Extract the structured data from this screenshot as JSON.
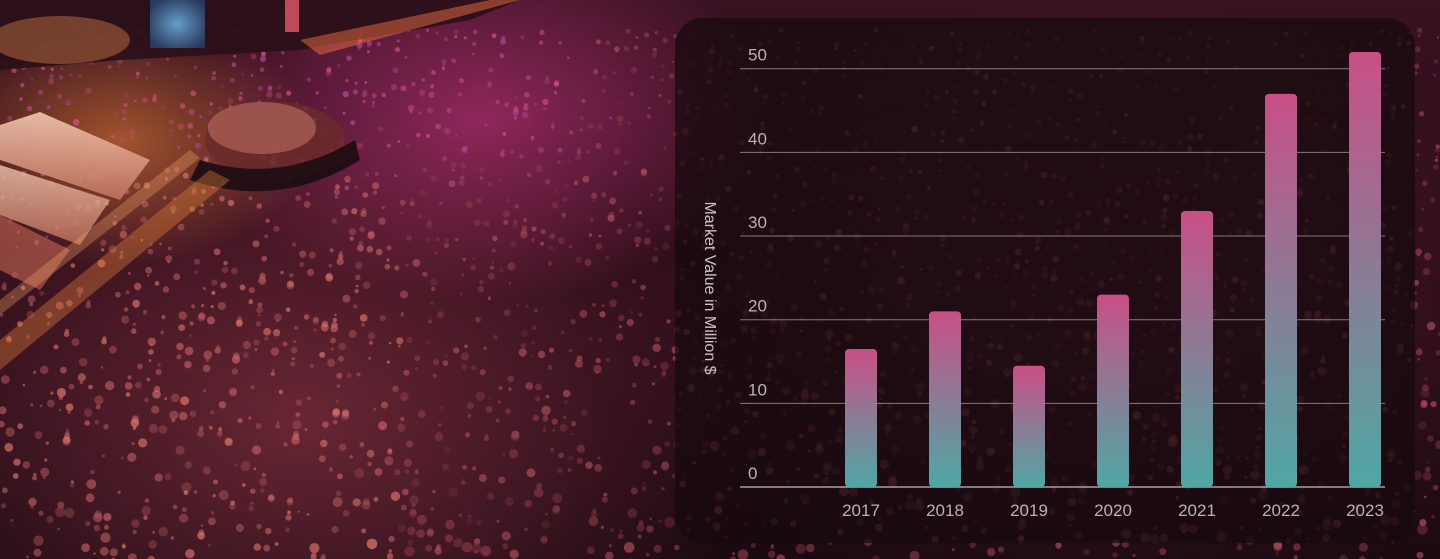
{
  "chart_data": {
    "type": "bar",
    "categories": [
      "2017",
      "2018",
      "2019",
      "2020",
      "2021",
      "2022",
      "2023"
    ],
    "values": [
      16.5,
      21,
      14.5,
      23,
      33,
      47,
      52
    ],
    "title": "",
    "xlabel": "",
    "ylabel": "Market Value in Million $",
    "ylim": [
      0,
      52
    ],
    "yticks": [
      "0",
      "10",
      "20",
      "30",
      "40",
      "50"
    ],
    "grid": true,
    "legend": "none",
    "bar_gradient": [
      "#c94f86",
      "#4fa7a4"
    ],
    "gridline_color": "#d8d2d4"
  },
  "background": {
    "description_colors": [
      "#3a1222",
      "#e0508f",
      "#f08a3c"
    ]
  }
}
